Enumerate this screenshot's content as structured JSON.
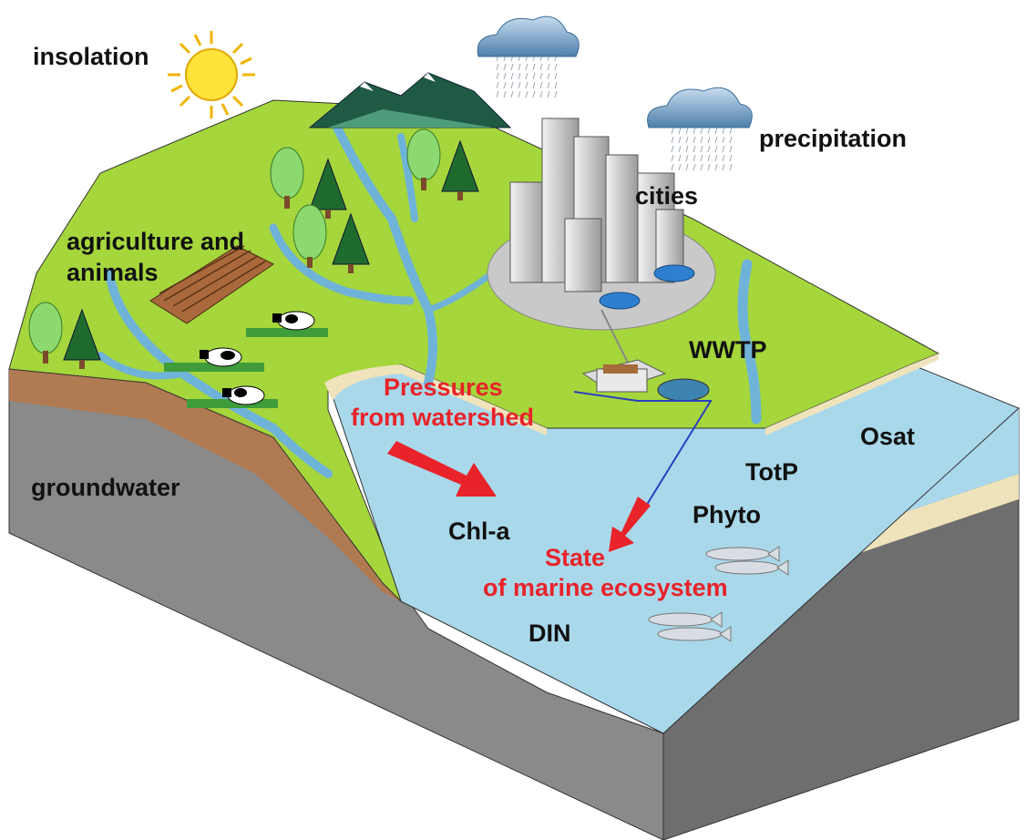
{
  "labels": {
    "insolation": "insolation",
    "precipitation": "precipitation",
    "cities": "cities",
    "agriculture_line1": "agriculture and",
    "agriculture_line2": "animals",
    "wwtp": "WWTP",
    "groundwater": "groundwater",
    "pressures_line1": "Pressures",
    "pressures_line2": "from watershed",
    "state_line1": "State",
    "state_line2": "of marine ecosystem",
    "osat": "Osat",
    "totp": "TotP",
    "phyto": "Phyto",
    "chla": "Chl-a",
    "din": "DIN"
  },
  "colors": {
    "land": "#a5d63c",
    "water": "#a9d8ea",
    "soil": "#b07a52",
    "bedrock": "#8a8a8a",
    "sand": "#efe3bc",
    "label_black": "#111111",
    "label_red": "#e8232a",
    "arrow_red": "#e8232a"
  },
  "icons": [
    "sun-icon",
    "rain-cloud-icon",
    "mountain-icon",
    "tree-icon",
    "city-icon",
    "car-icon",
    "field-icon",
    "cow-icon",
    "treatment-plant-icon",
    "fish-icon",
    "arrow-icon"
  ]
}
